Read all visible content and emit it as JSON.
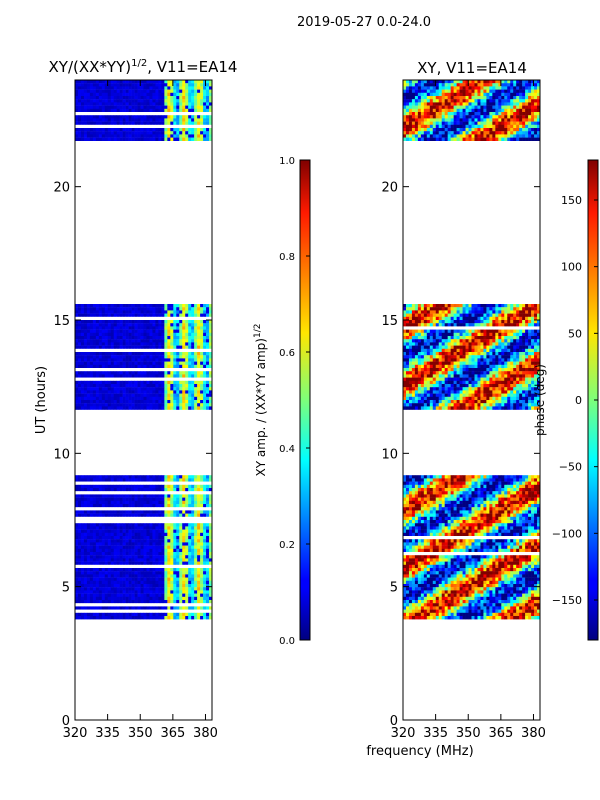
{
  "figure": {
    "suptitle": "2019-05-27 0.0-24.0",
    "xlabel": "frequency (MHz)"
  },
  "chart_data": [
    {
      "type": "heatmap",
      "title_main": "XY/(XX*YY)",
      "title_sup": "1/2",
      "title_rest": ", V11=EA14",
      "ylabel": "UT (hours)",
      "xticks": [
        320,
        335,
        350,
        365,
        380
      ],
      "yticks": [
        0,
        5,
        10,
        15,
        20
      ],
      "xlim": [
        320,
        383
      ],
      "ylim": [
        0,
        24
      ],
      "colorscale": "jet",
      "data_bands_hours": [
        [
          3.8,
          9.3
        ],
        [
          11.7,
          15.6
        ],
        [
          21.7,
          24.0
        ]
      ],
      "colorbar": {
        "label_main": "XY amp. / (XX*YY amp)",
        "label_sup": "1/2",
        "ticks": [
          "0.0",
          "0.2",
          "0.4",
          "0.6",
          "0.8",
          "1.0"
        ],
        "range": [
          0,
          1
        ]
      }
    },
    {
      "type": "heatmap",
      "title": "XY, V11=EA14",
      "xticks": [
        320,
        335,
        350,
        365,
        380
      ],
      "yticks": [
        0,
        5,
        10,
        15,
        20
      ],
      "xlim": [
        320,
        383
      ],
      "ylim": [
        0,
        24
      ],
      "colorscale": "jet",
      "data_bands_hours": [
        [
          3.8,
          9.3
        ],
        [
          11.7,
          15.6
        ],
        [
          21.7,
          24.0
        ]
      ],
      "colorbar": {
        "label": "phase (deg)",
        "ticks": [
          "150",
          "100",
          "50",
          "0",
          "−50",
          "−100",
          "−150"
        ],
        "range": [
          -180,
          180
        ]
      }
    }
  ]
}
